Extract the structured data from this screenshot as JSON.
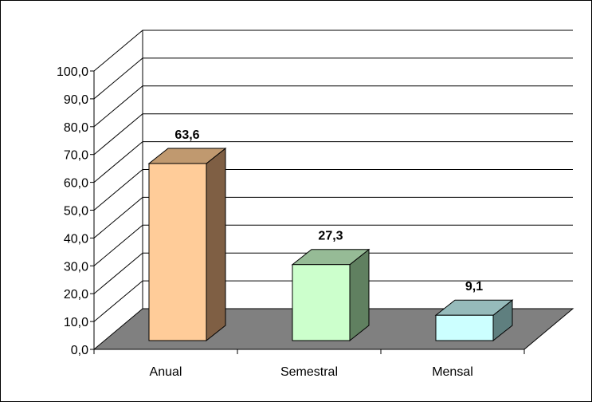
{
  "chart_data": {
    "type": "bar",
    "style": "3d-column",
    "categories": [
      "Anual",
      "Semestral",
      "Mensal"
    ],
    "values": [
      63.6,
      27.3,
      9.1
    ],
    "value_labels": [
      "63,6",
      "27,3",
      "9,1"
    ],
    "yticks": [
      "0,0",
      "10,0",
      "20,0",
      "30,0",
      "40,0",
      "50,0",
      "60,0",
      "70,0",
      "80,0",
      "90,0",
      "100,0"
    ],
    "ylim": [
      0,
      100
    ],
    "grid": true,
    "legend": false,
    "colors": {
      "floor": "#808080",
      "grid": "#000000",
      "bars": [
        {
          "front": "#ffcc99",
          "top": "#c0996f",
          "side": "#7f5f44"
        },
        {
          "front": "#ccffcc",
          "top": "#96bb96",
          "side": "#608060"
        },
        {
          "front": "#ccffff",
          "top": "#96bbbb",
          "side": "#5f7f7f"
        }
      ]
    }
  }
}
